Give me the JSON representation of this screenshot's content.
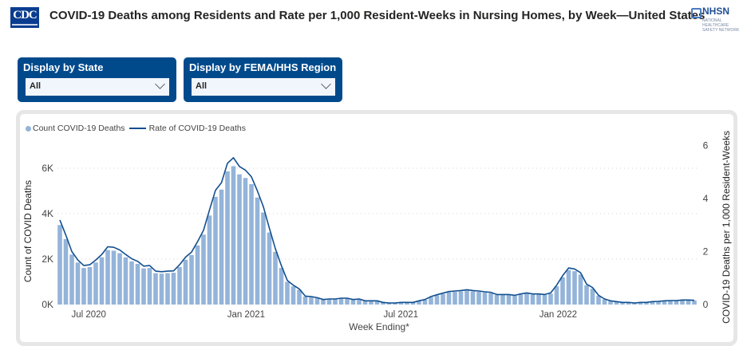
{
  "header": {
    "title": "COVID-19 Deaths among Residents and Rate per 1,000 Resident-Weeks in Nursing Homes, by Week—United States",
    "left_logo": "CDC",
    "right_logo": "NHSN",
    "right_logo_sub": "NATIONAL HEALTHCARE SAFETY NETWORK"
  },
  "filters": [
    {
      "label": "Display by State",
      "value": "All"
    },
    {
      "label": "Display by FEMA/HHS Region",
      "value": "All"
    }
  ],
  "colors": {
    "bars": "#94b4d9",
    "line": "#124f8f",
    "filter_bg": "#004a8c"
  },
  "chart_data": {
    "type": "bar+line",
    "xlabel": "Week Ending*",
    "ylabel": "Count of COVID Deaths",
    "y2label": "COVID-19 Deaths per 1,000 Resident-Weeks",
    "ylim": [
      0,
      6600
    ],
    "y2lim": [
      0,
      6
    ],
    "yticks": [
      "0K",
      "2K",
      "4K",
      "6K"
    ],
    "ytick_values": [
      0,
      2000,
      4000,
      6000
    ],
    "y2ticks": [
      "0",
      "2",
      "4",
      "6"
    ],
    "xticks": [
      {
        "label": "Jul 2020",
        "date": "2020-07-01"
      },
      {
        "label": "Jan 2021",
        "date": "2021-01-01"
      },
      {
        "label": "Jul 2021",
        "date": "2021-07-01"
      },
      {
        "label": "Jan 2022",
        "date": "2022-01-01"
      }
    ],
    "grid": true,
    "legend_position": "top-left",
    "legend": [
      "Count COVID-19 Deaths",
      "Rate of COVID-19 Deaths"
    ],
    "x": [
      "2020-05-31",
      "2020-06-07",
      "2020-06-14",
      "2020-06-21",
      "2020-06-28",
      "2020-07-05",
      "2020-07-12",
      "2020-07-19",
      "2020-07-26",
      "2020-08-02",
      "2020-08-09",
      "2020-08-16",
      "2020-08-23",
      "2020-08-30",
      "2020-09-06",
      "2020-09-13",
      "2020-09-20",
      "2020-09-27",
      "2020-10-04",
      "2020-10-11",
      "2020-10-18",
      "2020-10-25",
      "2020-11-01",
      "2020-11-08",
      "2020-11-15",
      "2020-11-22",
      "2020-11-29",
      "2020-12-06",
      "2020-12-13",
      "2020-12-20",
      "2020-12-27",
      "2021-01-03",
      "2021-01-10",
      "2021-01-17",
      "2021-01-24",
      "2021-01-31",
      "2021-02-07",
      "2021-02-14",
      "2021-02-21",
      "2021-02-28",
      "2021-03-07",
      "2021-03-14",
      "2021-03-21",
      "2021-03-28",
      "2021-04-04",
      "2021-04-11",
      "2021-04-18",
      "2021-04-25",
      "2021-05-02",
      "2021-05-09",
      "2021-05-16",
      "2021-05-23",
      "2021-05-30",
      "2021-06-06",
      "2021-06-13",
      "2021-06-20",
      "2021-06-27",
      "2021-07-04",
      "2021-07-11",
      "2021-07-18",
      "2021-07-25",
      "2021-08-01",
      "2021-08-08",
      "2021-08-15",
      "2021-08-22",
      "2021-08-29",
      "2021-09-05",
      "2021-09-12",
      "2021-09-19",
      "2021-09-26",
      "2021-10-03",
      "2021-10-10",
      "2021-10-17",
      "2021-10-24",
      "2021-10-31",
      "2021-11-07",
      "2021-11-14",
      "2021-11-21",
      "2021-11-28",
      "2021-12-05",
      "2021-12-12",
      "2021-12-19",
      "2021-12-26",
      "2022-01-02",
      "2022-01-09",
      "2022-01-16",
      "2022-01-23",
      "2022-01-30",
      "2022-02-06",
      "2022-02-13",
      "2022-02-20",
      "2022-02-27",
      "2022-03-06",
      "2022-03-13",
      "2022-03-20",
      "2022-03-27",
      "2022-04-03",
      "2022-04-10",
      "2022-04-17",
      "2022-04-24",
      "2022-05-01",
      "2022-05-08",
      "2022-05-15",
      "2022-05-22",
      "2022-05-29",
      "2022-06-05",
      "2022-06-12"
    ],
    "series": [
      {
        "name": "Count COVID-19 Deaths",
        "type": "bar",
        "axis": "left",
        "values": [
          3500,
          2880,
          2200,
          1850,
          1610,
          1650,
          1850,
          2080,
          2400,
          2370,
          2260,
          2080,
          1900,
          1790,
          1590,
          1610,
          1380,
          1360,
          1380,
          1400,
          1650,
          1970,
          2180,
          2600,
          3080,
          3920,
          4740,
          5060,
          5860,
          6090,
          5730,
          5570,
          5300,
          4710,
          4050,
          3170,
          2320,
          1610,
          1000,
          800,
          650,
          350,
          330,
          290,
          210,
          230,
          230,
          260,
          260,
          210,
          230,
          150,
          150,
          150,
          90,
          70,
          70,
          90,
          90,
          90,
          150,
          210,
          330,
          410,
          470,
          540,
          560,
          580,
          620,
          580,
          560,
          530,
          500,
          420,
          420,
          420,
          390,
          440,
          480,
          440,
          440,
          420,
          480,
          800,
          1200,
          1520,
          1470,
          1320,
          850,
          700,
          390,
          230,
          150,
          120,
          90,
          90,
          70,
          90,
          90,
          120,
          130,
          150,
          170,
          170,
          190,
          190,
          180
        ]
      },
      {
        "name": "Rate of COVID-19 Deaths",
        "type": "line",
        "axis": "right",
        "values": [
          3.19,
          2.62,
          2.0,
          1.68,
          1.47,
          1.5,
          1.68,
          1.89,
          2.18,
          2.16,
          2.06,
          1.89,
          1.73,
          1.63,
          1.45,
          1.47,
          1.26,
          1.24,
          1.26,
          1.27,
          1.5,
          1.79,
          1.98,
          2.37,
          2.8,
          3.57,
          4.31,
          4.6,
          5.33,
          5.54,
          5.21,
          5.07,
          4.82,
          4.29,
          3.69,
          2.88,
          2.11,
          1.47,
          0.91,
          0.73,
          0.59,
          0.32,
          0.3,
          0.26,
          0.19,
          0.21,
          0.21,
          0.24,
          0.24,
          0.19,
          0.21,
          0.14,
          0.14,
          0.14,
          0.08,
          0.06,
          0.06,
          0.08,
          0.08,
          0.08,
          0.14,
          0.19,
          0.3,
          0.37,
          0.43,
          0.49,
          0.51,
          0.53,
          0.56,
          0.53,
          0.51,
          0.48,
          0.46,
          0.38,
          0.38,
          0.38,
          0.35,
          0.4,
          0.44,
          0.4,
          0.4,
          0.38,
          0.44,
          0.73,
          1.09,
          1.38,
          1.34,
          1.2,
          0.77,
          0.64,
          0.35,
          0.21,
          0.14,
          0.11,
          0.08,
          0.08,
          0.06,
          0.08,
          0.08,
          0.11,
          0.12,
          0.14,
          0.15,
          0.15,
          0.17,
          0.17,
          0.16
        ]
      }
    ]
  }
}
